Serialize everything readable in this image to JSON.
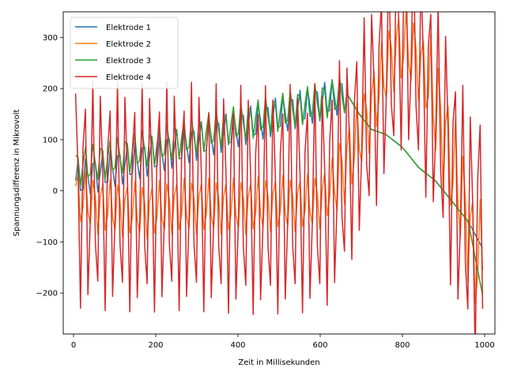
{
  "chart_data": {
    "type": "line",
    "title": "",
    "xlabel": "Zeit in Millisekunden",
    "ylabel": "Spannungsdifferenz in Mikrovolt",
    "xlim": [
      -25,
      1025
    ],
    "ylim": [
      -280,
      350
    ],
    "xticks": [
      0,
      200,
      400,
      600,
      800,
      1000
    ],
    "xtick_labels": [
      "0",
      "200",
      "400",
      "600",
      "800",
      "1000"
    ],
    "yticks": [
      -200,
      -100,
      0,
      100,
      200,
      300
    ],
    "ytick_labels": [
      "−200",
      "−100",
      "0",
      "100",
      "200",
      "300"
    ],
    "grid": false,
    "legend_position": "top-left",
    "sample_spacing_ms": 6,
    "series": [
      {
        "name": "Elektrode 1",
        "color": "#1f77b4",
        "x": [
          5,
          665,
          695,
          725,
          760,
          800,
          840,
          880,
          920,
          960,
          1000
        ],
        "y": [
          20,
          190,
          150,
          120,
          110,
          85,
          45,
          20,
          -20,
          -60,
          -120
        ]
      },
      {
        "name": "Elektrode 2",
        "color": "#ff7f0e",
        "x": [
          5,
          60,
          120,
          180,
          240,
          300,
          360,
          420,
          480,
          540,
          600,
          640,
          680,
          720,
          760,
          780,
          800,
          820,
          840,
          860,
          880,
          900,
          940,
          980,
          1000
        ],
        "y": [
          -10,
          -30,
          -35,
          -40,
          -30,
          -30,
          -30,
          -30,
          -25,
          -25,
          -20,
          20,
          80,
          150,
          240,
          270,
          285,
          275,
          250,
          220,
          170,
          110,
          0,
          -140,
          -110
        ]
      },
      {
        "name": "Elektrode 3",
        "color": "#2ca02c",
        "x": [
          5,
          665,
          695,
          725,
          760,
          800,
          840,
          880,
          920,
          960,
          1000
        ],
        "y": [
          45,
          190,
          150,
          120,
          110,
          85,
          45,
          20,
          -20,
          -60,
          -225
        ]
      },
      {
        "name": "Elektrode 4",
        "color": "#d62728",
        "x": [
          5,
          60,
          120,
          180,
          240,
          300,
          360,
          420,
          480,
          540,
          600,
          640,
          680,
          720,
          760,
          780,
          800,
          820,
          840,
          860,
          880,
          900,
          940,
          980,
          1000
        ],
        "y": [
          -5,
          -10,
          -12,
          -15,
          -10,
          -12,
          -15,
          -18,
          -18,
          -15,
          -15,
          20,
          80,
          150,
          230,
          270,
          300,
          285,
          240,
          200,
          160,
          110,
          -20,
          -90,
          0
        ]
      }
    ]
  }
}
